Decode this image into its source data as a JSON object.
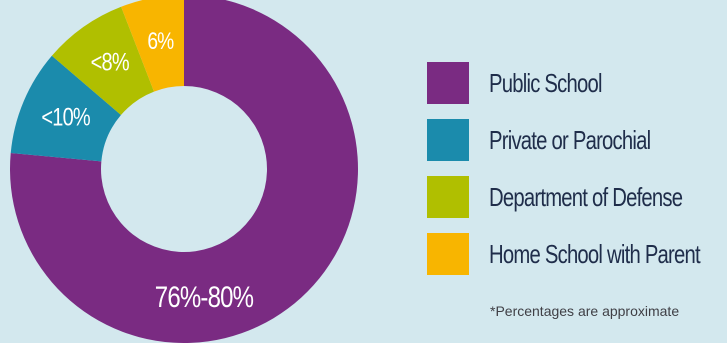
{
  "chart_data": {
    "type": "pie",
    "categories": [
      "Public School",
      "Private or Parochial",
      "Department of Defense",
      "Home School with Parent"
    ],
    "values": [
      78,
      10,
      8,
      6
    ],
    "value_labels": [
      "76%-80%",
      "<10%",
      "<8%",
      "6%"
    ],
    "colors": [
      "#7a2b82",
      "#1b8bac",
      "#b0bf00",
      "#f8b500"
    ],
    "title": "",
    "note": "*Percentages are approximate",
    "legend_position": "right",
    "grid": false
  }
}
